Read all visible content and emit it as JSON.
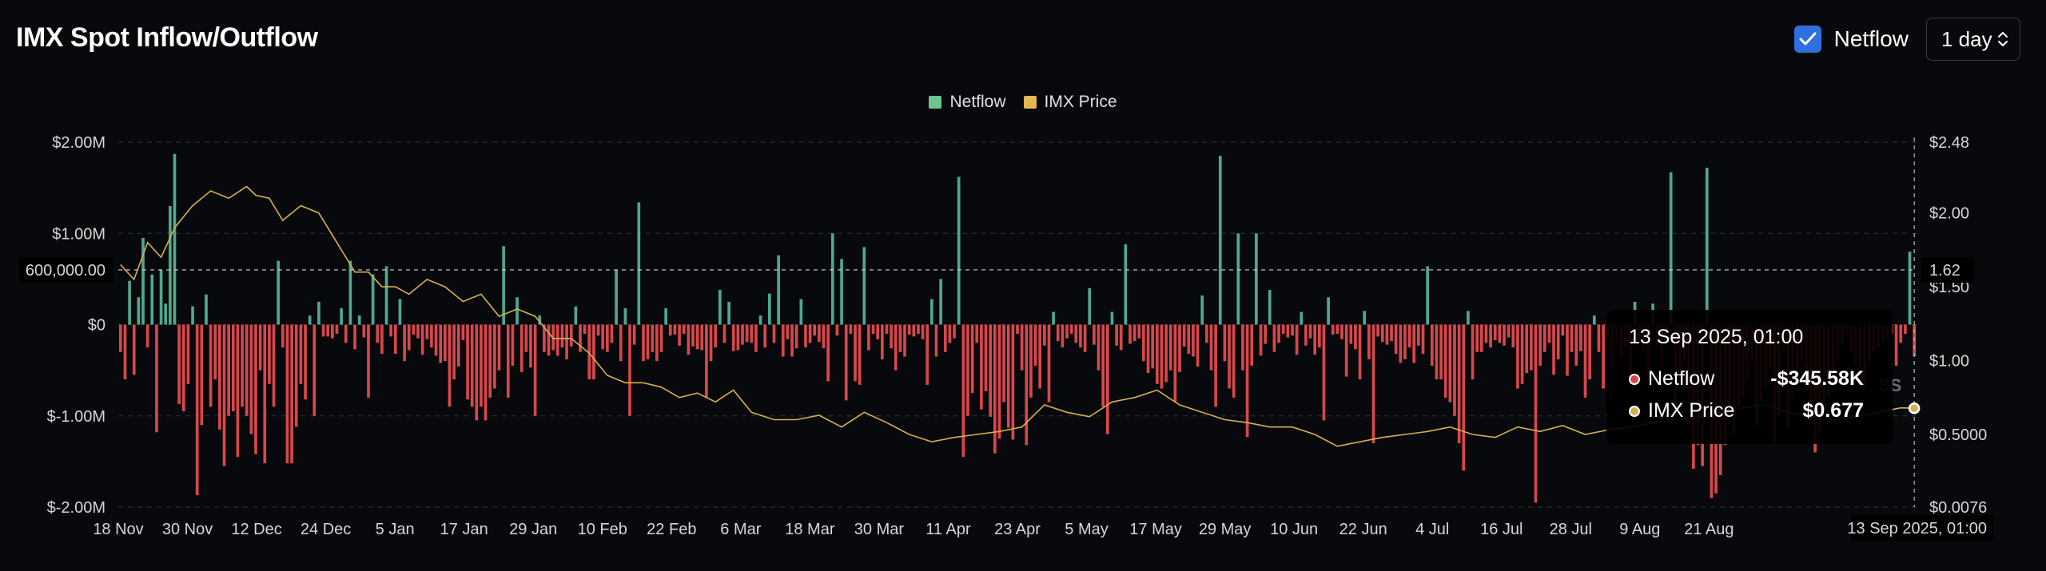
{
  "header": {
    "title": "IMX Spot Inflow/Outflow",
    "netflow_checkbox_label": "Netflow",
    "netflow_checked": true,
    "interval_value": "1 day",
    "interval_icon": "chevron-updown-icon",
    "checkbox_icon": "checkmark-icon"
  },
  "tooltip": {
    "title": "13 Sep 2025, 01:00",
    "rows": [
      {
        "label": "Netflow",
        "value": "-$345.58K"
      },
      {
        "label": "IMX Price",
        "value": "$0.677"
      }
    ]
  },
  "watermark": "SS",
  "crosshair": {
    "x_label": "13 Sep 2025, 01:00",
    "y_left_label": "600,000.00",
    "y_right_label": "1.62",
    "y_value": 600000
  },
  "colors": {
    "inflow": "#4fa98d",
    "outflow": "#d9474b",
    "price": "#d6b04e",
    "background": "#08090c",
    "accent": "#2f6fe0"
  },
  "chart_data": {
    "type": "bar",
    "legend_position": "top-center",
    "grid": true,
    "x_tick_labels": [
      "18 Nov",
      "30 Nov",
      "12 Dec",
      "24 Dec",
      "5 Jan",
      "17 Jan",
      "29 Jan",
      "10 Feb",
      "22 Feb",
      "6 Mar",
      "18 Mar",
      "30 Mar",
      "11 Apr",
      "23 Apr",
      "5 May",
      "17 May",
      "29 May",
      "10 Jun",
      "22 Jun",
      "4 Jul",
      "16 Jul",
      "28 Jul",
      "9 Aug",
      "21 Aug"
    ],
    "y_left": {
      "ticks": [
        2000000,
        1000000,
        0,
        -1000000,
        -2000000
      ],
      "labels": [
        "$2.00M",
        "$1.00M",
        "$0",
        "$-1.00M",
        "$-2.00M"
      ],
      "range": [
        -2000000,
        2000000
      ]
    },
    "y_right": {
      "ticks": [
        2.48,
        2.0,
        1.5,
        1.0,
        0.5,
        0.0076
      ],
      "labels": [
        "$2.48",
        "$2.00",
        "$1.50",
        "$1.00",
        "$0.5000",
        "$0.0076"
      ],
      "range": [
        0.0076,
        2.48
      ]
    },
    "series": [
      {
        "name": "Netflow",
        "type": "bar",
        "values": [
          -300000,
          -600000,
          480000,
          -550000,
          300000,
          950000,
          -250000,
          550000,
          -1180000,
          600000,
          230000,
          1300000,
          1870000,
          -870000,
          -950000,
          -650000,
          200000,
          -1870000,
          -1100000,
          330000,
          -900000,
          -600000,
          -1150000,
          -1550000,
          -1000000,
          -950000,
          -1450000,
          -900000,
          -1000000,
          -1200000,
          -1420000,
          -500000,
          -1520000,
          -650000,
          -900000,
          700000,
          -250000,
          -1520000,
          -1520000,
          -1120000,
          -650000,
          -820000,
          100000,
          -1000000,
          250000,
          -130000,
          -130000,
          -150000,
          -100000,
          180000,
          -200000,
          700000,
          -270000,
          100000,
          -140000,
          -800000,
          550000,
          -200000,
          -320000,
          640000,
          -130000,
          -320000,
          280000,
          -400000,
          -280000,
          -110000,
          -150000,
          -330000,
          -160000,
          -250000,
          -340000,
          -420000,
          -400000,
          -900000,
          -600000,
          -460000,
          -170000,
          -820000,
          -900000,
          -1050000,
          -900000,
          -1050000,
          -800000,
          -700000,
          -500000,
          860000,
          -800000,
          -450000,
          300000,
          -520000,
          -300000,
          -470000,
          -1000000,
          100000,
          -300000,
          -340000,
          -280000,
          -340000,
          -250000,
          -380000,
          -240000,
          200000,
          -300000,
          -100000,
          -600000,
          -600000,
          -120000,
          -270000,
          -300000,
          -200000,
          600000,
          -400000,
          180000,
          -1000000,
          -220000,
          1340000,
          -400000,
          -380000,
          -300000,
          -400000,
          -300000,
          180000,
          -120000,
          -110000,
          -230000,
          -100000,
          -330000,
          -240000,
          -270000,
          -280000,
          -800000,
          -400000,
          -250000,
          380000,
          -200000,
          250000,
          -290000,
          -280000,
          -220000,
          -190000,
          -200000,
          -300000,
          100000,
          -250000,
          340000,
          -200000,
          760000,
          -350000,
          -160000,
          -350000,
          -260000,
          280000,
          -250000,
          -200000,
          -120000,
          -190000,
          -260000,
          -620000,
          1000000,
          -120000,
          720000,
          -830000,
          -100000,
          -620000,
          -660000,
          850000,
          -280000,
          -100000,
          -160000,
          -380000,
          -100000,
          -260000,
          -500000,
          -300000,
          -350000,
          -110000,
          -130000,
          -100000,
          -160000,
          -660000,
          280000,
          -350000,
          500000,
          -300000,
          -200000,
          -150000,
          1620000,
          -1450000,
          -1000000,
          -750000,
          -200000,
          -930000,
          -730000,
          -1010000,
          -1410000,
          -1250000,
          -850000,
          -1130000,
          -1260000,
          -100000,
          -500000,
          -1320000,
          -800000,
          -450000,
          -700000,
          -230000,
          -850000,
          140000,
          -180000,
          -250000,
          -150000,
          -100000,
          -200000,
          -250000,
          -300000,
          400000,
          -220000,
          -500000,
          -900000,
          -1200000,
          140000,
          -230000,
          -280000,
          880000,
          -210000,
          -180000,
          -150000,
          -400000,
          -530000,
          -480000,
          -650000,
          -700000,
          -630000,
          -500000,
          -850000,
          -520000,
          -240000,
          -320000,
          -350000,
          -460000,
          320000,
          -200000,
          -500000,
          -900000,
          1850000,
          -400000,
          -700000,
          -800000,
          1000000,
          -500000,
          -1230000,
          -450000,
          1000000,
          -340000,
          -210000,
          380000,
          -300000,
          -200000,
          -100000,
          -140000,
          -120000,
          -330000,
          140000,
          -230000,
          -150000,
          -330000,
          -250000,
          -1050000,
          300000,
          -110000,
          -100000,
          -160000,
          -570000,
          -210000,
          -270000,
          -600000,
          150000,
          -380000,
          -1300000,
          -130000,
          -190000,
          -220000,
          -180000,
          -320000,
          -420000,
          -380000,
          -250000,
          -420000,
          -230000,
          -320000,
          640000,
          -450000,
          -600000,
          -600000,
          -800000,
          -850000,
          -1000000,
          -1300000,
          -1600000,
          150000,
          -600000,
          -300000,
          -300000,
          -200000,
          -250000,
          -170000,
          -200000,
          -230000,
          -140000,
          -250000,
          -700000,
          -650000,
          -530000,
          -500000,
          -1950000,
          -450000,
          -300000,
          -200000,
          -550000,
          -380000,
          -120000,
          -560000,
          -300000,
          -450000,
          -290000,
          -800000,
          -600000,
          100000,
          -300000,
          -700000,
          -150000,
          -480000,
          -200000,
          -350000,
          -250000,
          -650000,
          250000,
          -200000,
          -300000,
          -600000,
          230000,
          -250000,
          -450000,
          -200000,
          1670000,
          -950000,
          -700000,
          -400000,
          -820000,
          -1580000,
          -1320000,
          -1550000,
          1720000,
          -1900000,
          -1850000,
          -1650000,
          -1320000,
          -1000000,
          -1200000,
          -900000,
          -800000,
          -600000,
          -400000,
          -1100000,
          -850000,
          -700000,
          -500000,
          -1300000,
          -1000000,
          -300000,
          -1150000,
          -800000,
          -700000,
          -400000,
          -600000,
          -900000,
          -1400000,
          -1200000,
          -1000000,
          -800000,
          -600000,
          -400000,
          -200000,
          -100000,
          -300000,
          -450000,
          -500000,
          -700000,
          -400000,
          -300000,
          -250000,
          -200000,
          -150000,
          -100000,
          -450000,
          -200000,
          -100000,
          800000,
          -345580
        ]
      },
      {
        "name": "IMX Price",
        "type": "line",
        "x_values": [
          0,
          3,
          6,
          9,
          12,
          16,
          20,
          24,
          28,
          30,
          33,
          36,
          40,
          44,
          48,
          52,
          55,
          58,
          61,
          64,
          68,
          72,
          76,
          80,
          84,
          88,
          92,
          96,
          100,
          104,
          108,
          112,
          116,
          120,
          124,
          128,
          132,
          136,
          140,
          145,
          150,
          155,
          160,
          165,
          170,
          175,
          180,
          185,
          190,
          195,
          200,
          205,
          210,
          215,
          220,
          225,
          230,
          235,
          240,
          245,
          250,
          255,
          260,
          265,
          270,
          275,
          280,
          285,
          290,
          295,
          300,
          305,
          310,
          315,
          320,
          325,
          330,
          335,
          340,
          345,
          350,
          355,
          360,
          365,
          370,
          375,
          380,
          385,
          390,
          395,
          399
        ],
        "values": [
          1.65,
          1.55,
          1.8,
          1.7,
          1.9,
          2.05,
          2.15,
          2.1,
          2.18,
          2.12,
          2.1,
          1.95,
          2.05,
          2.0,
          1.8,
          1.6,
          1.6,
          1.5,
          1.5,
          1.45,
          1.55,
          1.5,
          1.4,
          1.45,
          1.3,
          1.35,
          1.3,
          1.15,
          1.15,
          1.05,
          0.9,
          0.85,
          0.85,
          0.82,
          0.75,
          0.78,
          0.72,
          0.8,
          0.65,
          0.6,
          0.6,
          0.63,
          0.55,
          0.65,
          0.58,
          0.5,
          0.45,
          0.48,
          0.5,
          0.52,
          0.55,
          0.7,
          0.65,
          0.62,
          0.72,
          0.75,
          0.8,
          0.7,
          0.65,
          0.6,
          0.58,
          0.55,
          0.55,
          0.5,
          0.42,
          0.45,
          0.48,
          0.5,
          0.52,
          0.55,
          0.5,
          0.48,
          0.55,
          0.52,
          0.56,
          0.5,
          0.53,
          0.55,
          0.58,
          0.6,
          0.62,
          0.65,
          0.68,
          0.7,
          0.65,
          0.62,
          0.6,
          0.62,
          0.65,
          0.68,
          0.677
        ]
      }
    ]
  }
}
